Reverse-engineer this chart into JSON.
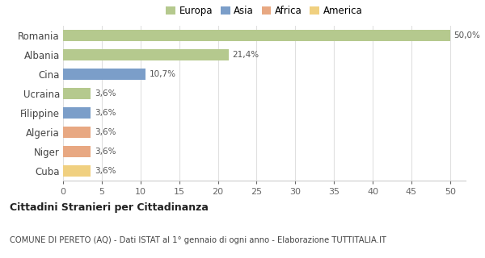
{
  "categories": [
    "Romania",
    "Albania",
    "Cina",
    "Ucraina",
    "Filippine",
    "Algeria",
    "Niger",
    "Cuba"
  ],
  "values": [
    50.0,
    21.4,
    10.7,
    3.6,
    3.6,
    3.6,
    3.6,
    3.6
  ],
  "labels": [
    "50,0%",
    "21,4%",
    "10,7%",
    "3,6%",
    "3,6%",
    "3,6%",
    "3,6%",
    "3,6%"
  ],
  "bar_colors": [
    "#b5c98e",
    "#b5c98e",
    "#7b9ec9",
    "#b5c98e",
    "#7b9ec9",
    "#e8a882",
    "#e8a882",
    "#f0d080"
  ],
  "legend_labels": [
    "Europa",
    "Asia",
    "Africa",
    "America"
  ],
  "legend_colors": [
    "#b5c98e",
    "#7b9ec9",
    "#e8a882",
    "#f0d080"
  ],
  "xlim": [
    0,
    52
  ],
  "xticks": [
    0,
    5,
    10,
    15,
    20,
    25,
    30,
    35,
    40,
    45,
    50
  ],
  "title": "Cittadini Stranieri per Cittadinanza",
  "subtitle": "COMUNE DI PERETO (AQ) - Dati ISTAT al 1° gennaio di ogni anno - Elaborazione TUTTITALIA.IT",
  "background_color": "#ffffff",
  "grid_color": "#e0e0e0"
}
